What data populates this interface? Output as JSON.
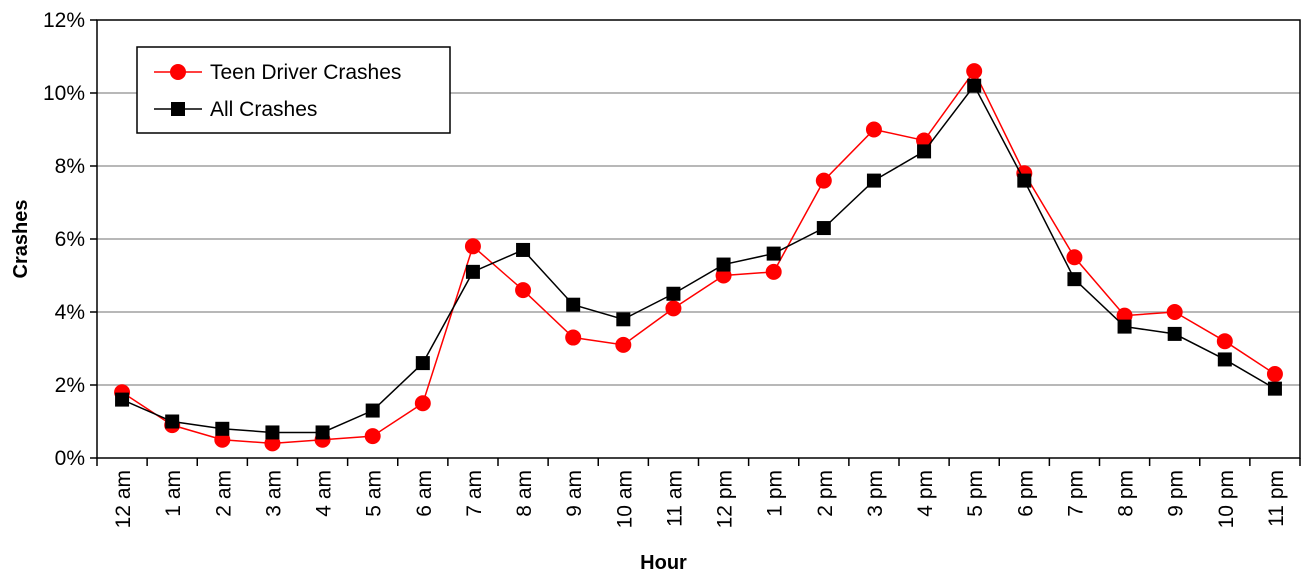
{
  "chart_data": {
    "type": "line",
    "title": "",
    "xlabel": "Hour",
    "ylabel": "Crashes",
    "ylim": [
      0,
      12
    ],
    "yticks": [
      0,
      2,
      4,
      6,
      8,
      10,
      12
    ],
    "ytick_labels": [
      "0%",
      "2%",
      "4%",
      "6%",
      "8%",
      "10%",
      "12%"
    ],
    "grid": true,
    "legend_position": "top-left",
    "categories": [
      "12 am",
      "1 am",
      "2 am",
      "3 am",
      "4 am",
      "5 am",
      "6 am",
      "7 am",
      "8 am",
      "9 am",
      "10 am",
      "11 am",
      "12 pm",
      "1 pm",
      "2 pm",
      "3 pm",
      "4 pm",
      "5 pm",
      "6 pm",
      "7 pm",
      "8 pm",
      "9 pm",
      "10 pm",
      "11 pm"
    ],
    "series": [
      {
        "name": "Teen Driver Crashes",
        "color": "#ff0000",
        "marker": "circle",
        "values": [
          1.8,
          0.9,
          0.5,
          0.4,
          0.5,
          0.6,
          1.5,
          5.8,
          4.6,
          3.3,
          3.1,
          4.1,
          5.0,
          5.1,
          7.6,
          9.0,
          8.7,
          10.6,
          7.8,
          5.5,
          3.9,
          4.0,
          3.2,
          2.3
        ]
      },
      {
        "name": "All Crashes",
        "color": "#000000",
        "marker": "square",
        "values": [
          1.6,
          1.0,
          0.8,
          0.7,
          0.7,
          1.3,
          2.6,
          5.1,
          5.7,
          4.2,
          3.8,
          4.5,
          5.3,
          5.6,
          6.3,
          7.6,
          8.4,
          10.2,
          7.6,
          4.9,
          3.6,
          3.4,
          2.7,
          1.9
        ]
      }
    ]
  }
}
